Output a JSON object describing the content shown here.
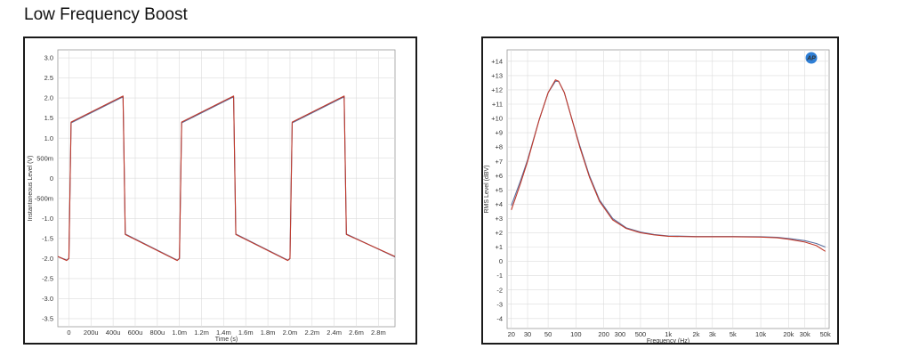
{
  "page": {
    "title": "Low Frequency Boost"
  },
  "chart_data": [
    {
      "type": "line",
      "title": "",
      "xlabel": "Time (s)",
      "ylabel": "Instantaneous Level (V)",
      "xlim": [
        -0.0001,
        0.00295
      ],
      "ylim": [
        -3.7,
        3.2
      ],
      "grid": true,
      "x_ticks": [
        {
          "v": 0,
          "label": "0"
        },
        {
          "v": 0.0002,
          "label": "200u"
        },
        {
          "v": 0.0004,
          "label": "400u"
        },
        {
          "v": 0.0006,
          "label": "600u"
        },
        {
          "v": 0.0008,
          "label": "800u"
        },
        {
          "v": 0.001,
          "label": "1.0m"
        },
        {
          "v": 0.0012,
          "label": "1.2m"
        },
        {
          "v": 0.0014,
          "label": "1.4m"
        },
        {
          "v": 0.0016,
          "label": "1.6m"
        },
        {
          "v": 0.0018,
          "label": "1.8m"
        },
        {
          "v": 0.002,
          "label": "2.0m"
        },
        {
          "v": 0.0022,
          "label": "2.2m"
        },
        {
          "v": 0.0024,
          "label": "2.4m"
        },
        {
          "v": 0.0026,
          "label": "2.6m"
        },
        {
          "v": 0.0028,
          "label": "2.8m"
        }
      ],
      "y_ticks": [
        {
          "v": 3.0,
          "label": "3.0"
        },
        {
          "v": 2.5,
          "label": "2.5"
        },
        {
          "v": 2.0,
          "label": "2.0"
        },
        {
          "v": 1.5,
          "label": "1.5"
        },
        {
          "v": 1.0,
          "label": "1.0"
        },
        {
          "v": 0.5,
          "label": "500m"
        },
        {
          "v": 0,
          "label": "0"
        },
        {
          "v": -0.5,
          "label": "-500m"
        },
        {
          "v": -1.0,
          "label": "-1.0"
        },
        {
          "v": -1.5,
          "label": "-1.5"
        },
        {
          "v": -2.0,
          "label": "-2.0"
        },
        {
          "v": -2.5,
          "label": "-2.5"
        },
        {
          "v": -3.0,
          "label": "-3.0"
        },
        {
          "v": -3.5,
          "label": "-3.5"
        }
      ],
      "series": [
        {
          "color": "#c0392b",
          "x": [
            -0.0001,
            -2e-05,
            0,
            2e-05,
            0.00049,
            0.00051,
            0.00098,
            0.001,
            0.00102,
            0.00149,
            0.00151,
            0.00198,
            0.002,
            0.00202,
            0.00249,
            0.00251,
            0.00295
          ],
          "y": [
            -1.95,
            -2.05,
            -2.0,
            1.4,
            2.05,
            -1.4,
            -2.05,
            -2.0,
            1.4,
            2.05,
            -1.4,
            -2.05,
            -2.0,
            1.4,
            2.05,
            -1.4,
            -1.95
          ]
        },
        {
          "color": "#5b6f9e",
          "x": [
            -0.0001,
            -2e-05,
            0,
            2e-05,
            0.00049,
            0.00051,
            0.00098,
            0.001,
            0.00102,
            0.00149,
            0.00151,
            0.00198,
            0.002,
            0.00202,
            0.00249,
            0.00251,
            0.00295
          ],
          "y": [
            -1.95,
            -2.04,
            -2.0,
            1.38,
            2.03,
            -1.39,
            -2.04,
            -2.0,
            1.38,
            2.03,
            -1.39,
            -2.04,
            -2.0,
            1.38,
            2.03,
            -1.39,
            -1.96
          ]
        }
      ]
    },
    {
      "type": "line",
      "title": "",
      "xlabel": "Frequency (Hz)",
      "ylabel": "RMS Level (dBV)",
      "xscale": "log",
      "xlim": [
        18,
        55000
      ],
      "ylim": [
        -4.7,
        14.8
      ],
      "grid": true,
      "logo": "AP",
      "x_ticks": [
        {
          "v": 20,
          "label": "20"
        },
        {
          "v": 30,
          "label": "30"
        },
        {
          "v": 50,
          "label": "50"
        },
        {
          "v": 100,
          "label": "100"
        },
        {
          "v": 200,
          "label": "200"
        },
        {
          "v": 300,
          "label": "300"
        },
        {
          "v": 500,
          "label": "500"
        },
        {
          "v": 1000,
          "label": "1k"
        },
        {
          "v": 2000,
          "label": "2k"
        },
        {
          "v": 3000,
          "label": "3k"
        },
        {
          "v": 5000,
          "label": "5k"
        },
        {
          "v": 10000,
          "label": "10k"
        },
        {
          "v": 20000,
          "label": "20k"
        },
        {
          "v": 30000,
          "label": "30k"
        },
        {
          "v": 50000,
          "label": "50k"
        }
      ],
      "y_ticks": [
        {
          "v": 14,
          "label": "+14"
        },
        {
          "v": 13,
          "label": "+13"
        },
        {
          "v": 12,
          "label": "+12"
        },
        {
          "v": 11,
          "label": "+11"
        },
        {
          "v": 10,
          "label": "+10"
        },
        {
          "v": 9,
          "label": "+9"
        },
        {
          "v": 8,
          "label": "+8"
        },
        {
          "v": 7,
          "label": "+7"
        },
        {
          "v": 6,
          "label": "+6"
        },
        {
          "v": 5,
          "label": "+5"
        },
        {
          "v": 4,
          "label": "+4"
        },
        {
          "v": 3,
          "label": "+3"
        },
        {
          "v": 2,
          "label": "+2"
        },
        {
          "v": 1,
          "label": "+1"
        },
        {
          "v": 0,
          "label": "0"
        },
        {
          "v": -1,
          "label": "-1"
        },
        {
          "v": -2,
          "label": "-2"
        },
        {
          "v": -3,
          "label": "-3"
        },
        {
          "v": -4,
          "label": "-4"
        }
      ],
      "series": [
        {
          "color": "#c0392b",
          "x": [
            20,
            25,
            30,
            40,
            50,
            60,
            65,
            75,
            90,
            110,
            140,
            180,
            250,
            350,
            500,
            700,
            1000,
            2000,
            5000,
            10000,
            15000,
            20000,
            30000,
            40000,
            50000
          ],
          "y": [
            3.6,
            5.4,
            7.0,
            9.9,
            11.8,
            12.7,
            12.6,
            11.8,
            10.0,
            8.0,
            5.9,
            4.2,
            2.9,
            2.3,
            2.0,
            1.85,
            1.75,
            1.72,
            1.72,
            1.7,
            1.65,
            1.55,
            1.35,
            1.1,
            0.7
          ]
        },
        {
          "color": "#5b6f9e",
          "x": [
            20,
            25,
            30,
            40,
            50,
            60,
            65,
            75,
            90,
            110,
            140,
            180,
            250,
            350,
            500,
            700,
            1000,
            2000,
            5000,
            10000,
            15000,
            20000,
            30000,
            40000,
            50000
          ],
          "y": [
            3.9,
            5.6,
            7.1,
            9.9,
            11.8,
            12.6,
            12.6,
            11.8,
            10.0,
            8.1,
            6.0,
            4.3,
            3.0,
            2.35,
            2.05,
            1.88,
            1.78,
            1.74,
            1.74,
            1.72,
            1.68,
            1.6,
            1.45,
            1.25,
            1.0
          ]
        }
      ]
    }
  ]
}
